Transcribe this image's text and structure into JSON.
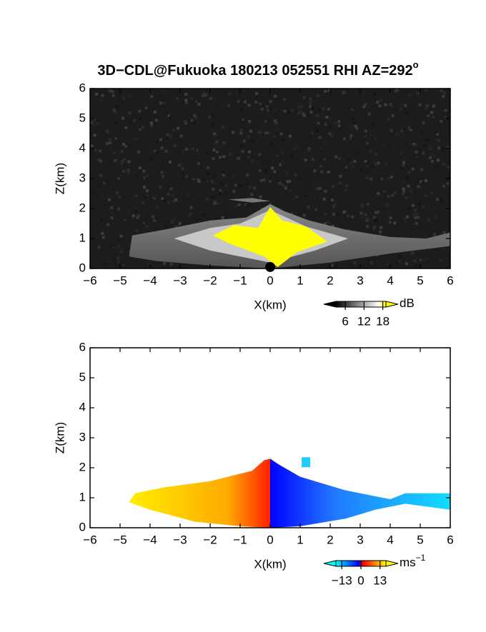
{
  "title": "3D−CDL@Fukuoka 180213 052551 RHI AZ=292",
  "title_superscript": "o",
  "chart_data": [
    {
      "type": "heatmap",
      "x_label": "X(km)",
      "y_label": "Z(km)",
      "xlim": [
        -6,
        6
      ],
      "ylim": [
        0,
        6
      ],
      "xticks": [
        {
          "value": -6,
          "label": "−6"
        },
        {
          "value": -5,
          "label": "−5"
        },
        {
          "value": -4,
          "label": "−4"
        },
        {
          "value": -3,
          "label": "−3"
        },
        {
          "value": -2,
          "label": "−2"
        },
        {
          "value": -1,
          "label": "−1"
        },
        0,
        1,
        2,
        3,
        4,
        5,
        6
      ],
      "yticks": [
        0,
        1,
        2,
        3,
        4,
        5,
        6
      ],
      "colorbar": {
        "unit": "dB",
        "clim": [
          3,
          19
        ],
        "ticks": [
          6,
          12,
          18
        ],
        "colors": [
          "#000000",
          "#ffffff",
          "#ffff00"
        ]
      }
    },
    {
      "type": "heatmap",
      "x_label": "X(km)",
      "y_label": "Z(km)",
      "xlim": [
        -6,
        6
      ],
      "ylim": [
        0,
        6
      ],
      "xticks": [
        {
          "value": -6,
          "label": "−6"
        },
        {
          "value": -5,
          "label": "−5"
        },
        {
          "value": -4,
          "label": "−4"
        },
        {
          "value": -3,
          "label": "−3"
        },
        {
          "value": -2,
          "label": "−2"
        },
        {
          "value": -1,
          "label": "−1"
        },
        0,
        1,
        2,
        3,
        4,
        5,
        6
      ],
      "yticks": [
        0,
        1,
        2,
        3,
        4,
        5,
        6
      ],
      "colorbar": {
        "unit": "ms",
        "unit_exponent": "−1",
        "clim": [
          -17,
          17
        ],
        "ticks": [
          {
            "value": -13,
            "label": "−13"
          },
          0,
          13
        ],
        "colors": [
          "#00ffff",
          "#0000ff",
          "#ff0000",
          "#ffff00"
        ]
      }
    }
  ]
}
